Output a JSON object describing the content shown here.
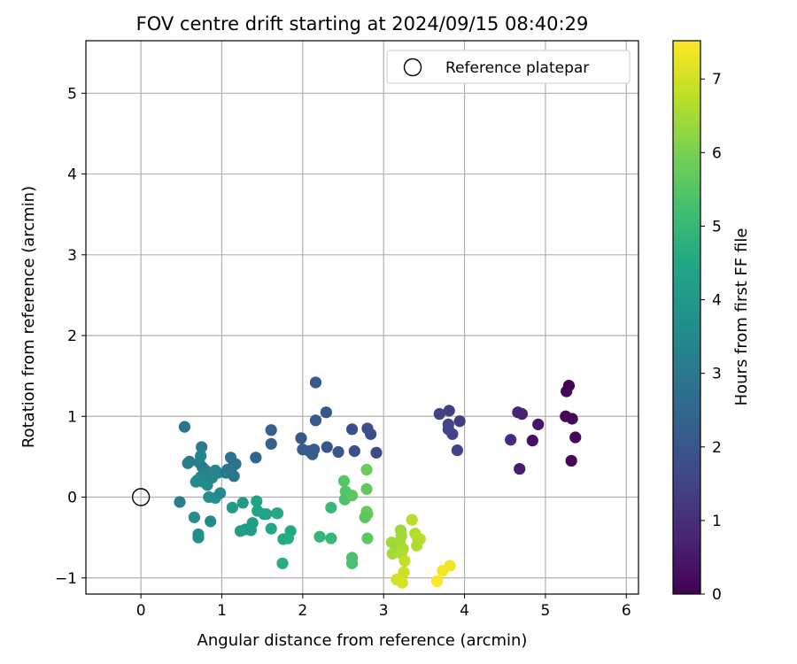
{
  "chart_data": {
    "type": "scatter",
    "title": "FOV centre drift starting at 2024/09/15 08:40:29",
    "xlabel": "Angular distance from reference (arcmin)",
    "ylabel": "Rotation from reference (arcmin)",
    "xlim": [
      -0.68,
      6.15
    ],
    "ylim": [
      -1.2,
      5.65
    ],
    "x_ticks": [
      0,
      1,
      2,
      3,
      4,
      5,
      6
    ],
    "y_ticks": [
      -1,
      0,
      1,
      2,
      3,
      4,
      5
    ],
    "grid": true,
    "legend": {
      "placement": "top-right",
      "entries": [
        "Reference platepar"
      ]
    },
    "reference_point": {
      "x": 0,
      "y": 0,
      "label": "Reference platepar"
    },
    "colorbar": {
      "label": "Hours from first FF file",
      "min": 0,
      "max": 7.52,
      "ticks": [
        0,
        1,
        2,
        3,
        4,
        5,
        6,
        7
      ],
      "colormap": "viridis"
    },
    "points": [
      {
        "x": 5.29,
        "y": 1.38,
        "h": 0.06
      },
      {
        "x": 5.26,
        "y": 1.31,
        "h": 0.08
      },
      {
        "x": 5.25,
        "y": 1.0,
        "h": 0.1
      },
      {
        "x": 5.33,
        "y": 0.97,
        "h": 0.12
      },
      {
        "x": 5.37,
        "y": 0.74,
        "h": 0.1
      },
      {
        "x": 5.32,
        "y": 0.45,
        "h": 0.08
      },
      {
        "x": 4.91,
        "y": 0.9,
        "h": 0.4
      },
      {
        "x": 4.84,
        "y": 0.7,
        "h": 0.3
      },
      {
        "x": 4.66,
        "y": 1.05,
        "h": 0.8
      },
      {
        "x": 4.71,
        "y": 1.03,
        "h": 0.7
      },
      {
        "x": 4.57,
        "y": 0.71,
        "h": 0.95
      },
      {
        "x": 4.68,
        "y": 0.35,
        "h": 0.6
      },
      {
        "x": 3.69,
        "y": 1.03,
        "h": 1.45
      },
      {
        "x": 3.81,
        "y": 1.07,
        "h": 1.4
      },
      {
        "x": 3.8,
        "y": 0.9,
        "h": 1.5
      },
      {
        "x": 3.8,
        "y": 0.84,
        "h": 1.55
      },
      {
        "x": 3.85,
        "y": 0.78,
        "h": 1.5
      },
      {
        "x": 3.94,
        "y": 0.94,
        "h": 1.35
      },
      {
        "x": 3.91,
        "y": 0.58,
        "h": 1.45
      },
      {
        "x": 2.16,
        "y": 1.42,
        "h": 2.1
      },
      {
        "x": 2.29,
        "y": 1.05,
        "h": 2.05
      },
      {
        "x": 2.16,
        "y": 0.95,
        "h": 2.1
      },
      {
        "x": 1.61,
        "y": 0.83,
        "h": 2.35
      },
      {
        "x": 1.61,
        "y": 0.66,
        "h": 2.35
      },
      {
        "x": 1.42,
        "y": 0.49,
        "h": 2.45
      },
      {
        "x": 1.98,
        "y": 0.73,
        "h": 2.05
      },
      {
        "x": 2.0,
        "y": 0.59,
        "h": 2.2
      },
      {
        "x": 2.08,
        "y": 0.57,
        "h": 2.25
      },
      {
        "x": 2.12,
        "y": 0.53,
        "h": 2.2
      },
      {
        "x": 2.14,
        "y": 0.59,
        "h": 2.2
      },
      {
        "x": 2.3,
        "y": 0.62,
        "h": 2.0
      },
      {
        "x": 2.44,
        "y": 0.56,
        "h": 2.0
      },
      {
        "x": 2.61,
        "y": 0.84,
        "h": 1.85
      },
      {
        "x": 2.64,
        "y": 0.57,
        "h": 1.85
      },
      {
        "x": 2.8,
        "y": 0.85,
        "h": 1.8
      },
      {
        "x": 2.84,
        "y": 0.78,
        "h": 1.75
      },
      {
        "x": 2.91,
        "y": 0.55,
        "h": 1.75
      },
      {
        "x": 0.54,
        "y": 0.87,
        "h": 2.9
      },
      {
        "x": 0.6,
        "y": 0.44,
        "h": 3.1
      },
      {
        "x": 0.58,
        "y": 0.42,
        "h": 3.2
      },
      {
        "x": 0.75,
        "y": 0.62,
        "h": 3.15
      },
      {
        "x": 0.74,
        "y": 0.51,
        "h": 3.4
      },
      {
        "x": 0.72,
        "y": 0.43,
        "h": 3.25
      },
      {
        "x": 0.76,
        "y": 0.37,
        "h": 3.1
      },
      {
        "x": 0.8,
        "y": 0.33,
        "h": 3.2
      },
      {
        "x": 0.83,
        "y": 0.29,
        "h": 3.3
      },
      {
        "x": 0.74,
        "y": 0.25,
        "h": 3.45
      },
      {
        "x": 0.7,
        "y": 0.21,
        "h": 3.5
      },
      {
        "x": 0.68,
        "y": 0.19,
        "h": 3.6
      },
      {
        "x": 0.77,
        "y": 0.19,
        "h": 3.55
      },
      {
        "x": 0.82,
        "y": 0.15,
        "h": 3.6
      },
      {
        "x": 0.88,
        "y": 0.24,
        "h": 3.45
      },
      {
        "x": 0.92,
        "y": 0.33,
        "h": 3.5
      },
      {
        "x": 0.95,
        "y": 0.3,
        "h": 3.4
      },
      {
        "x": 0.84,
        "y": 0.0,
        "h": 3.7
      },
      {
        "x": 0.92,
        "y": -0.01,
        "h": 3.7
      },
      {
        "x": 0.98,
        "y": 0.05,
        "h": 3.55
      },
      {
        "x": 1.11,
        "y": 0.49,
        "h": 2.9
      },
      {
        "x": 1.12,
        "y": 0.36,
        "h": 2.95
      },
      {
        "x": 1.07,
        "y": 0.34,
        "h": 2.9
      },
      {
        "x": 1.17,
        "y": 0.41,
        "h": 2.85
      },
      {
        "x": 1.15,
        "y": 0.26,
        "h": 2.95
      },
      {
        "x": 1.05,
        "y": 0.3,
        "h": 3.05
      },
      {
        "x": 0.48,
        "y": -0.06,
        "h": 3.2
      },
      {
        "x": 0.66,
        "y": -0.25,
        "h": 3.6
      },
      {
        "x": 0.71,
        "y": -0.46,
        "h": 3.7
      },
      {
        "x": 0.71,
        "y": -0.5,
        "h": 3.65
      },
      {
        "x": 0.86,
        "y": -0.3,
        "h": 3.55
      },
      {
        "x": 1.13,
        "y": -0.13,
        "h": 4.1
      },
      {
        "x": 1.26,
        "y": -0.07,
        "h": 4.05
      },
      {
        "x": 1.29,
        "y": -0.4,
        "h": 4.1
      },
      {
        "x": 1.23,
        "y": -0.42,
        "h": 4.15
      },
      {
        "x": 1.36,
        "y": -0.41,
        "h": 4.2
      },
      {
        "x": 1.38,
        "y": -0.32,
        "h": 4.15
      },
      {
        "x": 1.43,
        "y": -0.05,
        "h": 4.3
      },
      {
        "x": 1.44,
        "y": -0.17,
        "h": 4.4
      },
      {
        "x": 1.52,
        "y": -0.21,
        "h": 4.4
      },
      {
        "x": 1.55,
        "y": -0.21,
        "h": 4.35
      },
      {
        "x": 1.61,
        "y": -0.39,
        "h": 4.45
      },
      {
        "x": 1.69,
        "y": -0.2,
        "h": 4.6
      },
      {
        "x": 1.68,
        "y": -0.2,
        "h": 4.55
      },
      {
        "x": 1.85,
        "y": -0.42,
        "h": 4.55
      },
      {
        "x": 1.76,
        "y": -0.52,
        "h": 4.5
      },
      {
        "x": 1.82,
        "y": -0.51,
        "h": 4.6
      },
      {
        "x": 1.75,
        "y": -0.82,
        "h": 4.65
      },
      {
        "x": 2.35,
        "y": -0.13,
        "h": 5.05
      },
      {
        "x": 2.21,
        "y": -0.49,
        "h": 4.95
      },
      {
        "x": 2.35,
        "y": -0.51,
        "h": 5.0
      },
      {
        "x": 2.51,
        "y": 0.2,
        "h": 5.5
      },
      {
        "x": 2.53,
        "y": 0.07,
        "h": 5.45
      },
      {
        "x": 2.52,
        "y": -0.03,
        "h": 5.4
      },
      {
        "x": 2.61,
        "y": 0.02,
        "h": 5.6
      },
      {
        "x": 2.79,
        "y": 0.34,
        "h": 5.8
      },
      {
        "x": 2.79,
        "y": 0.1,
        "h": 5.7
      },
      {
        "x": 2.79,
        "y": -0.18,
        "h": 5.7
      },
      {
        "x": 2.8,
        "y": -0.21,
        "h": 5.75
      },
      {
        "x": 2.77,
        "y": -0.25,
        "h": 5.6
      },
      {
        "x": 2.8,
        "y": -0.51,
        "h": 5.6
      },
      {
        "x": 2.61,
        "y": -0.75,
        "h": 5.3
      },
      {
        "x": 2.61,
        "y": -0.82,
        "h": 5.35
      },
      {
        "x": 3.1,
        "y": -0.56,
        "h": 6.5
      },
      {
        "x": 3.15,
        "y": -0.6,
        "h": 6.4
      },
      {
        "x": 3.11,
        "y": -0.7,
        "h": 6.5
      },
      {
        "x": 3.21,
        "y": -0.41,
        "h": 6.4
      },
      {
        "x": 3.22,
        "y": -0.48,
        "h": 6.45
      },
      {
        "x": 3.2,
        "y": -0.55,
        "h": 6.5
      },
      {
        "x": 3.24,
        "y": -0.64,
        "h": 6.55
      },
      {
        "x": 3.22,
        "y": -0.7,
        "h": 6.6
      },
      {
        "x": 3.35,
        "y": -0.28,
        "h": 6.7
      },
      {
        "x": 3.39,
        "y": -0.45,
        "h": 6.65
      },
      {
        "x": 3.42,
        "y": -0.51,
        "h": 6.8
      },
      {
        "x": 3.45,
        "y": -0.52,
        "h": 6.7
      },
      {
        "x": 3.41,
        "y": -0.6,
        "h": 6.6
      },
      {
        "x": 3.26,
        "y": -0.79,
        "h": 6.8
      },
      {
        "x": 3.25,
        "y": -0.93,
        "h": 6.9
      },
      {
        "x": 3.16,
        "y": -1.02,
        "h": 7.0
      },
      {
        "x": 3.23,
        "y": -1.06,
        "h": 7.05
      },
      {
        "x": 3.73,
        "y": -0.91,
        "h": 7.4
      },
      {
        "x": 3.82,
        "y": -0.85,
        "h": 7.35
      },
      {
        "x": 3.66,
        "y": -1.04,
        "h": 7.5
      }
    ]
  }
}
